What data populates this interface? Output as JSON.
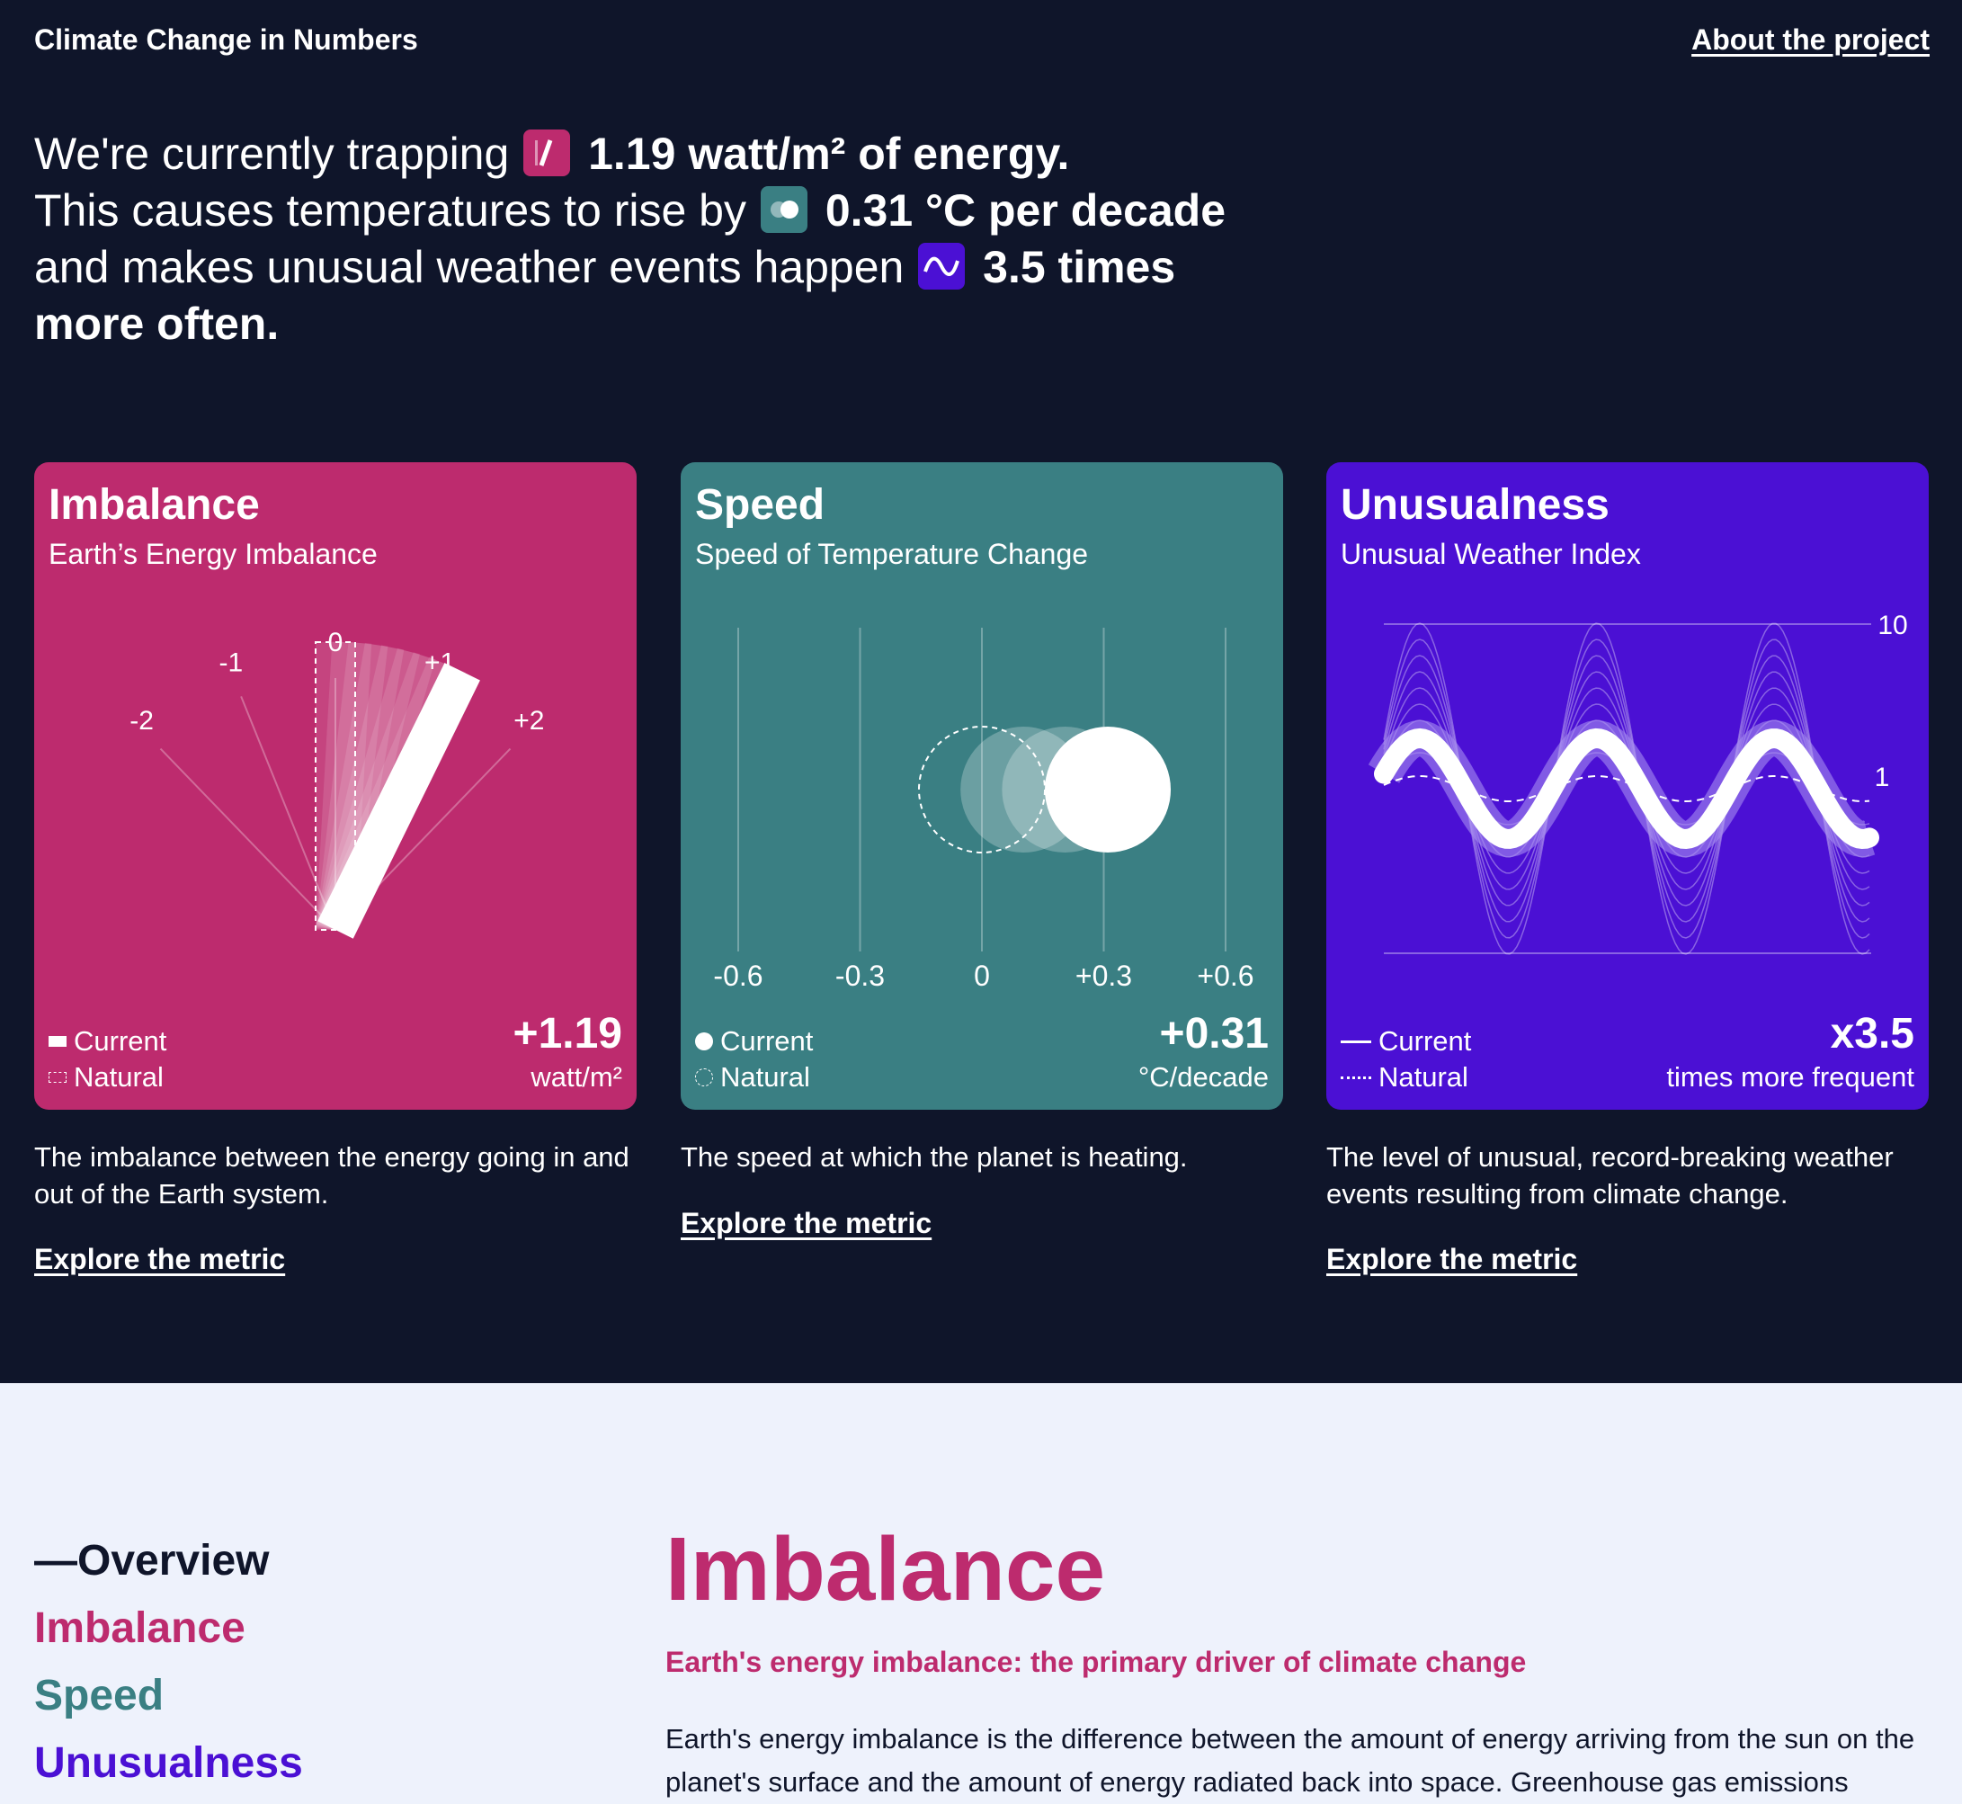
{
  "header": {
    "brand": "Climate Change in Numbers",
    "about_link": "About the project"
  },
  "headline": {
    "line1_text": "We're currently trapping",
    "line1_value": "1.19 watt/m² of energy.",
    "line2_text": "This causes temperatures to rise by",
    "line2_value": "0.31 °C per decade",
    "line3_text": "and makes unusual weather events happen",
    "line3_value": "3.5 times more often."
  },
  "colors": {
    "background": "#0f152a",
    "imbalance": "#bd2b6e",
    "speed": "#3a7f83",
    "unusualness": "#4b10d4",
    "light_bg": "#eef2fc"
  },
  "cards": [
    {
      "title": "Imbalance",
      "subtitle": "Earth’s Energy Imbalance",
      "legend_current": "Current",
      "legend_natural": "Natural",
      "value": "+1.19",
      "unit": "watt/m²",
      "description": "The imbalance between the energy going in and out of the Earth system.",
      "explore": "Explore the metric",
      "gauge": {
        "ticks": [
          "-2",
          "-1",
          "0",
          "+1",
          "+2"
        ],
        "tick_values": [
          -2,
          -1,
          0,
          1,
          2
        ],
        "current": 1.19,
        "natural": 0
      }
    },
    {
      "title": "Speed",
      "subtitle": "Speed of Temperature Change",
      "legend_current": "Current",
      "legend_natural": "Natural",
      "value": "+0.31",
      "unit": "°C/decade",
      "description": "The speed at which the planet is heating.",
      "explore": "Explore the metric",
      "scale": {
        "ticks": [
          "-0.6",
          "-0.3",
          "0",
          "+0.3",
          "+0.6"
        ],
        "tick_values": [
          -0.6,
          -0.3,
          0,
          0.3,
          0.6
        ],
        "current": 0.31,
        "natural": 0
      }
    },
    {
      "title": "Unusualness",
      "subtitle": "Unusual Weather Index",
      "legend_current": "Current",
      "legend_natural": "Natural",
      "value": "x3.5",
      "unit": "times more frequent",
      "description": "The level of unusual, record-breaking weather events resulting from climate change.",
      "explore": "Explore the metric",
      "wave": {
        "axis_labels": [
          "10",
          "1"
        ],
        "current": 3.5,
        "natural": 1
      }
    }
  ],
  "nav": {
    "items": [
      "—Overview",
      "Imbalance",
      "Speed",
      "Unusualness"
    ],
    "colors": [
      "#0f152a",
      "#bd2b6e",
      "#3a7f83",
      "#4b10d4"
    ]
  },
  "section": {
    "title": "Imbalance",
    "subtitle": "Earth's energy imbalance: the primary driver of climate change",
    "body": "Earth's energy imbalance is the difference between the amount of energy arriving from the sun on the planet's surface and the amount of energy radiated back into space. Greenhouse gas emissions"
  }
}
